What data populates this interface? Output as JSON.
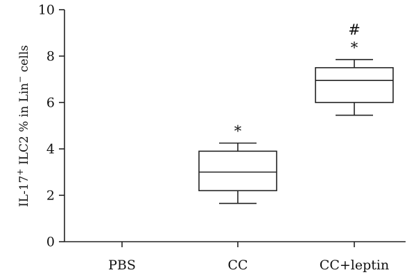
{
  "chart_data": {
    "type": "box",
    "ylabel": {
      "pre": "IL-17",
      "sup1": "+",
      "mid": " ILC2 % in Lin",
      "sup2": "−",
      "post": " cells"
    },
    "ylim": [
      0,
      10
    ],
    "yticks": [
      "0",
      "2",
      "4",
      "6",
      "8",
      "10"
    ],
    "categories": [
      "PBS",
      "CC",
      "CC+leptin"
    ],
    "boxes": [
      null,
      {
        "min": 1.65,
        "q1": 2.2,
        "median": 3.0,
        "q3": 3.9,
        "max": 4.25,
        "marks": [
          "*"
        ]
      },
      {
        "min": 5.45,
        "q1": 6.0,
        "median": 6.95,
        "q3": 7.5,
        "max": 7.85,
        "marks": [
          "*",
          "#"
        ]
      }
    ],
    "grid": false,
    "legend": "none"
  }
}
